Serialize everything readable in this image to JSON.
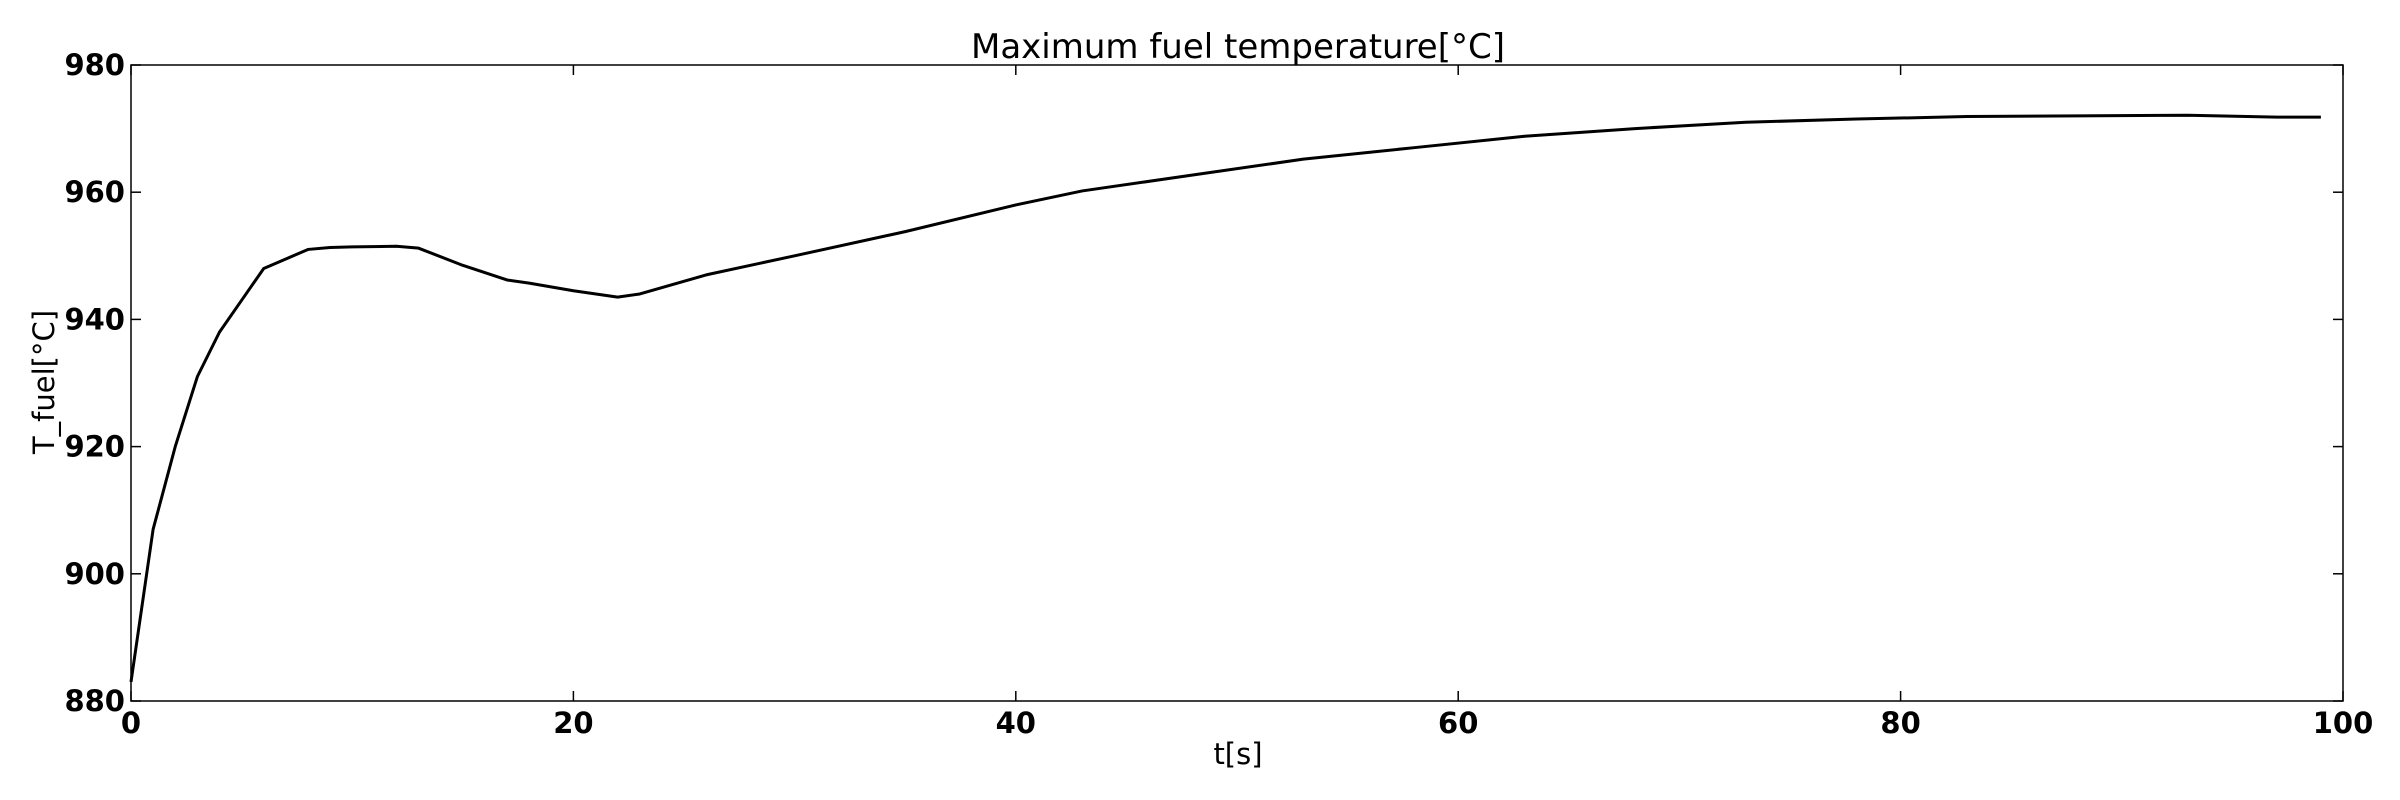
{
  "chart_data": {
    "type": "line",
    "title": "Maximum fuel temperature[$^\\circ C$]",
    "title_display": "Maximum fuel temperature[°C]",
    "xlabel": "t[s]",
    "ylabel": "T_fuel[°C]",
    "xlim": [
      0,
      100
    ],
    "ylim": [
      880,
      980
    ],
    "xticks": [
      0,
      20,
      40,
      60,
      80,
      100
    ],
    "yticks": [
      880,
      900,
      920,
      940,
      960,
      980
    ],
    "xtick_labels": [
      "0",
      "20",
      "40",
      "60",
      "80",
      "100"
    ],
    "ytick_labels": [
      "880",
      "900",
      "920",
      "940",
      "960",
      "980"
    ],
    "grid": false,
    "legend": "none",
    "colors": {
      "line": "#000000",
      "background": "#ffffff"
    },
    "series": [
      {
        "x": [
          0,
          1,
          2,
          3,
          4,
          5,
          6,
          7,
          8,
          9,
          10,
          12,
          13,
          15,
          17,
          18,
          20,
          22,
          23,
          26,
          30,
          35,
          40,
          43,
          48,
          53,
          58,
          63,
          68,
          73,
          78,
          83,
          88,
          93,
          97,
          99
        ],
        "y": [
          883,
          907,
          920,
          931,
          938,
          943,
          948,
          949.5,
          951,
          951.3,
          951.4,
          951.5,
          951.2,
          948.5,
          946.2,
          945.7,
          944.5,
          943.5,
          944,
          947,
          950,
          953.8,
          958,
          960.2,
          962.7,
          965.2,
          967,
          968.8,
          970,
          971,
          971.5,
          971.9,
          972,
          972.1,
          971.8,
          971.8
        ]
      }
    ]
  }
}
